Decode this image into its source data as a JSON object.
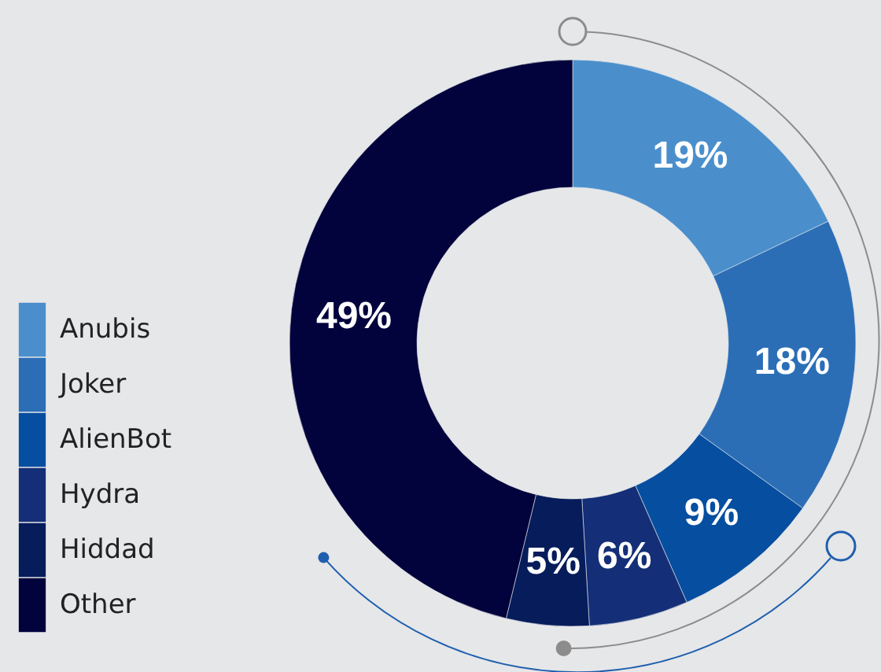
{
  "chart_data": {
    "type": "donut",
    "categories": [
      "Anubis",
      "Joker",
      "AlienBot",
      "Hydra",
      "Hiddad",
      "Other"
    ],
    "values": [
      19,
      18,
      9,
      6,
      5,
      49
    ],
    "colors": [
      "#4a8fcc",
      "#2b6eb6",
      "#064ea0",
      "#142f77",
      "#061c5b",
      "#02023c"
    ],
    "value_labels": [
      "19%",
      "18%",
      "9%",
      "6%",
      "5%",
      "49%"
    ],
    "legend": "left"
  }
}
